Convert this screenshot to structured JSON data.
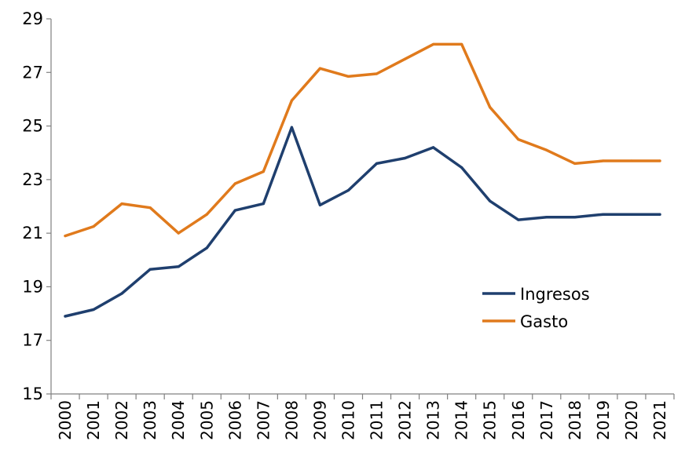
{
  "chart_data": {
    "type": "line",
    "title": "",
    "xlabel": "",
    "ylabel": "",
    "x": [
      "2000",
      "2001",
      "2002",
      "2003",
      "2004",
      "2005",
      "2006",
      "2007",
      "2008",
      "2009",
      "2010",
      "2011",
      "2012",
      "2013",
      "2014",
      "2015",
      "2016",
      "2017",
      "2018",
      "2019",
      "2020",
      "2021"
    ],
    "ylim": [
      15,
      29
    ],
    "yticks": [
      15,
      17,
      19,
      21,
      23,
      25,
      27,
      29
    ],
    "grid": false,
    "legend": "center-right",
    "series": [
      {
        "name": "Ingresos",
        "color": "#1f3f6e",
        "values": [
          17.9,
          18.15,
          18.75,
          19.65,
          19.75,
          20.45,
          21.85,
          22.1,
          24.95,
          22.05,
          22.6,
          23.6,
          23.8,
          24.2,
          23.45,
          22.2,
          21.5,
          21.6,
          21.6,
          21.7,
          21.7,
          21.7
        ]
      },
      {
        "name": "Gasto",
        "color": "#e07a1c",
        "values": [
          20.9,
          21.25,
          22.1,
          21.95,
          21.0,
          21.7,
          22.85,
          23.3,
          25.95,
          27.15,
          26.85,
          26.95,
          27.5,
          28.05,
          28.05,
          25.7,
          24.5,
          24.1,
          23.6,
          23.7,
          23.7,
          23.7
        ]
      }
    ]
  }
}
